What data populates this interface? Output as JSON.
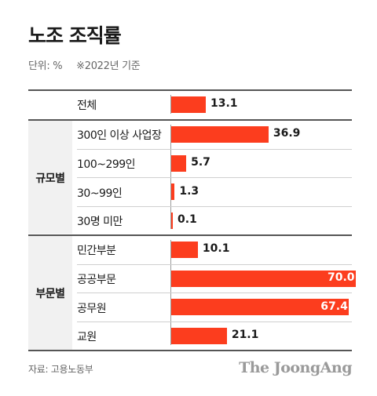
{
  "title": "노조 조직률",
  "unit_label": "단위: %",
  "unit_note": "※2022년 기준",
  "source": "자료: 고용노동부",
  "logo_text": "The JoongAng",
  "colors": {
    "bar": "#fc3d1e",
    "text": "#1a1a1a",
    "group_bg": "#f1f1f1"
  },
  "chart_data": {
    "type": "bar",
    "orientation": "horizontal",
    "title": "노조 조직률",
    "xlim": [
      0,
      70
    ],
    "groups": [
      {
        "label": "",
        "categories": [
          "전체"
        ],
        "values": [
          13.1
        ],
        "value_labels": [
          "13.1"
        ]
      },
      {
        "label": "규모별",
        "categories": [
          "300인 이상 사업장",
          "100~299인",
          "30~99인",
          "30명 미만"
        ],
        "values": [
          36.9,
          5.7,
          1.3,
          0.1
        ],
        "value_labels": [
          "36.9",
          "5.7",
          "1.3",
          "0.1"
        ]
      },
      {
        "label": "부문별",
        "categories": [
          "민간부분",
          "공공부문",
          "공무원",
          "교원"
        ],
        "values": [
          10.1,
          70.0,
          67.4,
          21.1
        ],
        "value_labels": [
          "10.1",
          "70.0",
          "67.4",
          "21.1"
        ]
      }
    ]
  }
}
